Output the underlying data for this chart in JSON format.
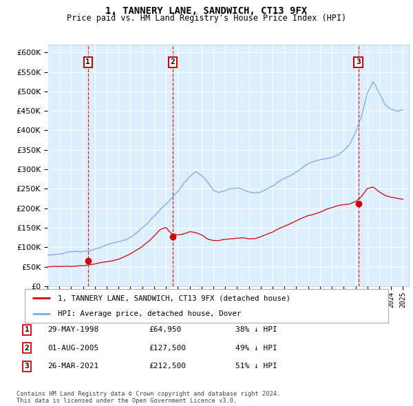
{
  "title": "1, TANNERY LANE, SANDWICH, CT13 9FX",
  "subtitle": "Price paid vs. HM Land Registry's House Price Index (HPI)",
  "ylim": [
    0,
    620000
  ],
  "ytick_values": [
    0,
    50000,
    100000,
    150000,
    200000,
    250000,
    300000,
    350000,
    400000,
    450000,
    500000,
    550000,
    600000
  ],
  "hpi_color": "#7aaadd",
  "sale_color": "#cc0000",
  "vline_color": "#cc0000",
  "plot_bg_color": "#ddeeff",
  "legend_label_sale": "1, TANNERY LANE, SANDWICH, CT13 9FX (detached house)",
  "legend_label_hpi": "HPI: Average price, detached house, Dover",
  "sales": [
    {
      "date_num": 1998.41,
      "price": 64950,
      "label": "1",
      "date_str": "29-MAY-1998",
      "pct": "38% ↓ HPI"
    },
    {
      "date_num": 2005.58,
      "price": 127500,
      "label": "2",
      "date_str": "01-AUG-2005",
      "pct": "49% ↓ HPI"
    },
    {
      "date_num": 2021.23,
      "price": 212500,
      "label": "3",
      "date_str": "26-MAR-2021",
      "pct": "51% ↓ HPI"
    }
  ],
  "footnote": "Contains HM Land Registry data © Crown copyright and database right 2024.\nThis data is licensed under the Open Government Licence v3.0.",
  "xmin": 1995.0,
  "xmax": 2025.5,
  "hpi_key_years": [
    1995.0,
    1995.5,
    1996.0,
    1996.5,
    1997.0,
    1997.5,
    1998.0,
    1998.5,
    1999.0,
    1999.5,
    2000.0,
    2000.5,
    2001.0,
    2001.5,
    2002.0,
    2002.5,
    2003.0,
    2003.5,
    2004.0,
    2004.5,
    2005.0,
    2005.5,
    2006.0,
    2006.5,
    2007.0,
    2007.5,
    2008.0,
    2008.5,
    2009.0,
    2009.5,
    2010.0,
    2010.5,
    2011.0,
    2011.5,
    2012.0,
    2012.5,
    2013.0,
    2013.5,
    2014.0,
    2014.5,
    2015.0,
    2015.5,
    2016.0,
    2016.5,
    2017.0,
    2017.5,
    2018.0,
    2018.5,
    2019.0,
    2019.5,
    2020.0,
    2020.5,
    2021.0,
    2021.5,
    2022.0,
    2022.5,
    2023.0,
    2023.5,
    2024.0,
    2024.5,
    2025.0
  ],
  "hpi_key_vals": [
    80000,
    82000,
    84000,
    85000,
    87000,
    89000,
    91000,
    93000,
    96000,
    100000,
    104000,
    108000,
    112000,
    117000,
    124000,
    135000,
    148000,
    162000,
    178000,
    195000,
    210000,
    225000,
    242000,
    262000,
    278000,
    290000,
    282000,
    265000,
    243000,
    238000,
    242000,
    248000,
    250000,
    248000,
    240000,
    238000,
    240000,
    248000,
    258000,
    270000,
    278000,
    285000,
    295000,
    305000,
    315000,
    320000,
    325000,
    330000,
    335000,
    342000,
    352000,
    368000,
    398000,
    438000,
    500000,
    530000,
    500000,
    470000,
    460000,
    455000,
    460000
  ],
  "sale_key_years": [
    1995.0,
    1995.5,
    1996.0,
    1996.5,
    1997.0,
    1997.5,
    1998.0,
    1998.5,
    1999.0,
    1999.5,
    2000.0,
    2000.5,
    2001.0,
    2001.5,
    2002.0,
    2002.5,
    2003.0,
    2003.5,
    2004.0,
    2004.5,
    2005.0,
    2005.5,
    2006.0,
    2006.5,
    2007.0,
    2007.5,
    2008.0,
    2008.5,
    2009.0,
    2009.5,
    2010.0,
    2010.5,
    2011.0,
    2011.5,
    2012.0,
    2012.5,
    2013.0,
    2013.5,
    2014.0,
    2014.5,
    2015.0,
    2015.5,
    2016.0,
    2016.5,
    2017.0,
    2017.5,
    2018.0,
    2018.5,
    2019.0,
    2019.5,
    2020.0,
    2020.5,
    2021.0,
    2021.5,
    2022.0,
    2022.5,
    2023.0,
    2023.5,
    2024.0,
    2024.5,
    2025.0
  ],
  "sale_key_vals": [
    50000,
    50500,
    51000,
    51500,
    52000,
    53000,
    54000,
    56000,
    59000,
    62000,
    65000,
    68000,
    72000,
    78000,
    85000,
    94000,
    104000,
    116000,
    130000,
    145000,
    152000,
    135000,
    132000,
    135000,
    140000,
    138000,
    132000,
    122000,
    118000,
    118000,
    120000,
    122000,
    124000,
    125000,
    122000,
    122000,
    126000,
    132000,
    138000,
    145000,
    152000,
    158000,
    165000,
    172000,
    178000,
    182000,
    188000,
    195000,
    200000,
    205000,
    208000,
    210000,
    215000,
    228000,
    248000,
    252000,
    240000,
    230000,
    225000,
    222000,
    220000
  ]
}
